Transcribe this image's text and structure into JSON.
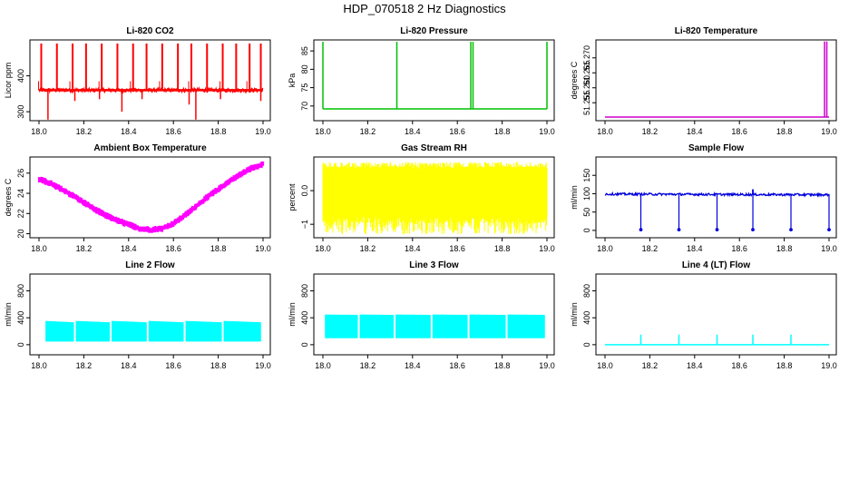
{
  "page_title": "HDP_070518 2 Hz Diagnostics",
  "chart_data": [
    {
      "type": "line",
      "title": "Li-820 CO2",
      "xlabel": "",
      "ylabel": "Licor ppm",
      "color": "#ff0000",
      "xlim": [
        18.0,
        19.0
      ],
      "ylim": [
        275,
        500
      ],
      "xticks": [
        "18.0",
        "18.2",
        "18.4",
        "18.6",
        "18.8",
        "19.0"
      ],
      "yticks": [
        {
          "v": 300,
          "label": "300"
        },
        {
          "v": 400,
          "label": "400"
        }
      ],
      "pattern": "spikes",
      "baseline": 360,
      "noise": 6,
      "noise_samples": 420,
      "spikes_up": [
        18.01,
        18.08,
        18.15,
        18.21,
        18.28,
        18.35,
        18.42,
        18.48,
        18.55,
        18.62,
        18.68,
        18.75,
        18.82,
        18.88,
        18.94,
        18.99
      ],
      "spike_up_top": 490,
      "spikes_down": [
        {
          "x": 18.04,
          "y": 278
        },
        {
          "x": 18.16,
          "y": 330
        },
        {
          "x": 18.27,
          "y": 335
        },
        {
          "x": 18.37,
          "y": 300
        },
        {
          "x": 18.46,
          "y": 335
        },
        {
          "x": 18.67,
          "y": 320
        },
        {
          "x": 18.7,
          "y": 278
        },
        {
          "x": 18.81,
          "y": 335
        },
        {
          "x": 18.99,
          "y": 330
        }
      ]
    },
    {
      "type": "line",
      "title": "Li-820 Pressure",
      "xlabel": "",
      "ylabel": "kPa",
      "color": "#00c000",
      "xlim": [
        18.0,
        19.0
      ],
      "ylim": [
        66,
        88
      ],
      "xticks": [
        "18.0",
        "18.2",
        "18.4",
        "18.6",
        "18.8",
        "19.0"
      ],
      "yticks": [
        {
          "v": 70,
          "label": "70"
        },
        {
          "v": 75,
          "label": "75"
        },
        {
          "v": 80,
          "label": "80"
        },
        {
          "v": 85,
          "label": "85"
        }
      ],
      "pattern": "steps",
      "baseline": 69.2,
      "spikes_up": [
        18.0,
        18.33,
        18.66,
        18.67,
        19.0
      ],
      "spike_up_top": 87.5
    },
    {
      "type": "line",
      "title": "Li-820 Temperature",
      "xlabel": "",
      "ylabel": "degrees C",
      "color": "#cc00cc",
      "xlim": [
        18.0,
        19.0
      ],
      "ylim": [
        51.249,
        51.276
      ],
      "xticks": [
        "18.0",
        "18.2",
        "18.4",
        "18.6",
        "18.8",
        "19.0"
      ],
      "yticks": [
        {
          "v": 51.255,
          "label": "51.255"
        },
        {
          "v": 51.26,
          "label": "51.260"
        },
        {
          "v": 51.265,
          "label": "51.265"
        },
        {
          "v": 51.27,
          "label": "51.270"
        }
      ],
      "pattern": "steps",
      "baseline": 51.2502,
      "spikes_up": [
        18.98,
        18.99
      ],
      "spike_up_top": 51.2755
    },
    {
      "type": "line",
      "title": "Ambient Box Temperature",
      "xlabel": "",
      "ylabel": "degrees C",
      "color": "#ff00ff",
      "xlim": [
        18.0,
        19.0
      ],
      "ylim": [
        19.6,
        27.6
      ],
      "xticks": [
        "18.0",
        "18.2",
        "18.4",
        "18.6",
        "18.8",
        "19.0"
      ],
      "yticks": [
        {
          "v": 20,
          "label": "20"
        },
        {
          "v": 22,
          "label": "22"
        },
        {
          "v": 24,
          "label": "24"
        },
        {
          "v": 26,
          "label": "26"
        }
      ],
      "pattern": "band",
      "x": [
        18.0,
        18.05,
        18.1,
        18.15,
        18.2,
        18.25,
        18.3,
        18.35,
        18.4,
        18.45,
        18.5,
        18.55,
        18.6,
        18.65,
        18.7,
        18.75,
        18.8,
        18.85,
        18.9,
        18.95,
        19.0
      ],
      "y": [
        25.4,
        25.0,
        24.4,
        23.8,
        23.1,
        22.4,
        21.8,
        21.3,
        20.9,
        20.5,
        20.4,
        20.5,
        21.0,
        21.8,
        22.7,
        23.6,
        24.4,
        25.2,
        25.9,
        26.5,
        26.9
      ],
      "band_half_width": 0.35,
      "band_samples": 320
    },
    {
      "type": "line",
      "title": "Gas Stream RH",
      "xlabel": "",
      "ylabel": "percent",
      "color": "#ffff00",
      "xlim": [
        18.0,
        19.0
      ],
      "ylim": [
        -1.4,
        1.0
      ],
      "xticks": [
        "18.0",
        "18.2",
        "18.4",
        "18.6",
        "18.8",
        "19.0"
      ],
      "yticks": [
        {
          "v": -1.0,
          "label": "−1"
        },
        {
          "v": 0.0,
          "label": "0.0"
        }
      ],
      "pattern": "noise",
      "band_low": -0.75,
      "band_high": 0.65,
      "noise_min": -1.3,
      "noise_max": 0.85,
      "noise_samples": 700
    },
    {
      "type": "line",
      "title": "Sample Flow",
      "xlabel": "",
      "ylabel": "ml/min",
      "color": "#0000dd",
      "xlim": [
        18.0,
        19.0
      ],
      "ylim": [
        -20,
        200
      ],
      "xticks": [
        "18.0",
        "18.2",
        "18.4",
        "18.6",
        "18.8",
        "19.0"
      ],
      "yticks": [
        {
          "v": 0,
          "label": "0"
        },
        {
          "v": 50,
          "label": "50"
        },
        {
          "v": 100,
          "label": "100"
        },
        {
          "v": 150,
          "label": "150"
        }
      ],
      "pattern": "dips",
      "baseline": 99,
      "noise": 3,
      "trend_end": 97,
      "dips": [
        18.16,
        18.33,
        18.5,
        18.66,
        18.83,
        19.0
      ],
      "dip_bottom": 2,
      "spikes_up": [
        18.66
      ],
      "spike_up_top": 112
    },
    {
      "type": "line",
      "title": "Line 2 Flow",
      "xlabel": "",
      "ylabel": "ml/min",
      "color": "#00ffff",
      "xlim": [
        18.0,
        19.0
      ],
      "ylim": [
        -150,
        1050
      ],
      "xticks": [
        "18.0",
        "18.2",
        "18.4",
        "18.6",
        "18.8",
        "19.0"
      ],
      "yticks": [
        {
          "v": 0,
          "label": "0"
        },
        {
          "v": 400,
          "label": "400"
        },
        {
          "v": 800,
          "label": "800"
        }
      ],
      "pattern": "blocks",
      "blocks": [
        [
          18.03,
          18.155
        ],
        [
          18.165,
          18.315
        ],
        [
          18.325,
          18.48
        ],
        [
          18.49,
          18.645
        ],
        [
          18.655,
          18.815
        ],
        [
          18.825,
          18.99
        ]
      ],
      "block_low": 50,
      "block_high": 350,
      "block_high_end": 330
    },
    {
      "type": "line",
      "title": "Line 3 Flow",
      "xlabel": "",
      "ylabel": "ml/min",
      "color": "#00ffff",
      "xlim": [
        18.0,
        19.0
      ],
      "ylim": [
        -150,
        1050
      ],
      "xticks": [
        "18.0",
        "18.2",
        "18.4",
        "18.6",
        "18.8",
        "19.0"
      ],
      "yticks": [
        {
          "v": 0,
          "label": "0"
        },
        {
          "v": 400,
          "label": "400"
        },
        {
          "v": 800,
          "label": "800"
        }
      ],
      "pattern": "blocks",
      "blocks": [
        [
          18.01,
          18.155
        ],
        [
          18.165,
          18.315
        ],
        [
          18.325,
          18.48
        ],
        [
          18.49,
          18.645
        ],
        [
          18.655,
          18.815
        ],
        [
          18.825,
          18.99
        ]
      ],
      "block_low": 100,
      "block_high": 445,
      "block_high_end": 440
    },
    {
      "type": "line",
      "title": "Line 4 (LT) Flow",
      "xlabel": "",
      "ylabel": "ml/min",
      "color": "#00ffff",
      "xlim": [
        18.0,
        19.0
      ],
      "ylim": [
        -150,
        1050
      ],
      "xticks": [
        "18.0",
        "18.2",
        "18.4",
        "18.6",
        "18.8",
        "19.0"
      ],
      "yticks": [
        {
          "v": 0,
          "label": "0"
        },
        {
          "v": 400,
          "label": "400"
        },
        {
          "v": 800,
          "label": "800"
        }
      ],
      "pattern": "steps",
      "baseline": 0,
      "spikes_up": [
        18.16,
        18.33,
        18.5,
        18.66,
        18.83
      ],
      "spike_up_top": 150
    }
  ]
}
